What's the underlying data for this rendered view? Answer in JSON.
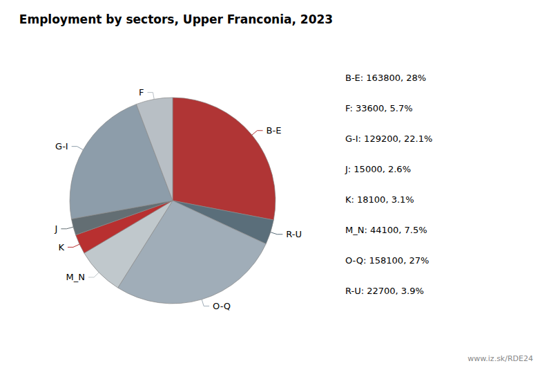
{
  "chart_data": {
    "type": "pie",
    "title": "Employment by sectors, Upper Franconia, 2023",
    "categories": [
      "B-E",
      "R-U",
      "O-Q",
      "M_N",
      "K",
      "J",
      "G-I",
      "F"
    ],
    "values": [
      163800,
      22700,
      158100,
      44100,
      18100,
      15000,
      129200,
      33600
    ],
    "colors": [
      "#b03535",
      "#5a6e7a",
      "#a0adb8",
      "#c0c8cc",
      "#b83030",
      "#636e73",
      "#8d9daa",
      "#b8bfc5"
    ],
    "annotations": [
      "B-E: 163800, 28%",
      "F: 33600, 5.7%",
      "G-I: 129200, 22.1%",
      "J: 15000, 2.6%",
      "K: 18100, 3.1%",
      "M_N: 44100, 7.5%",
      "O-Q: 158100, 27%",
      "R-U: 22700, 3.9%"
    ],
    "watermark": "www.iz.sk/RDE24"
  }
}
